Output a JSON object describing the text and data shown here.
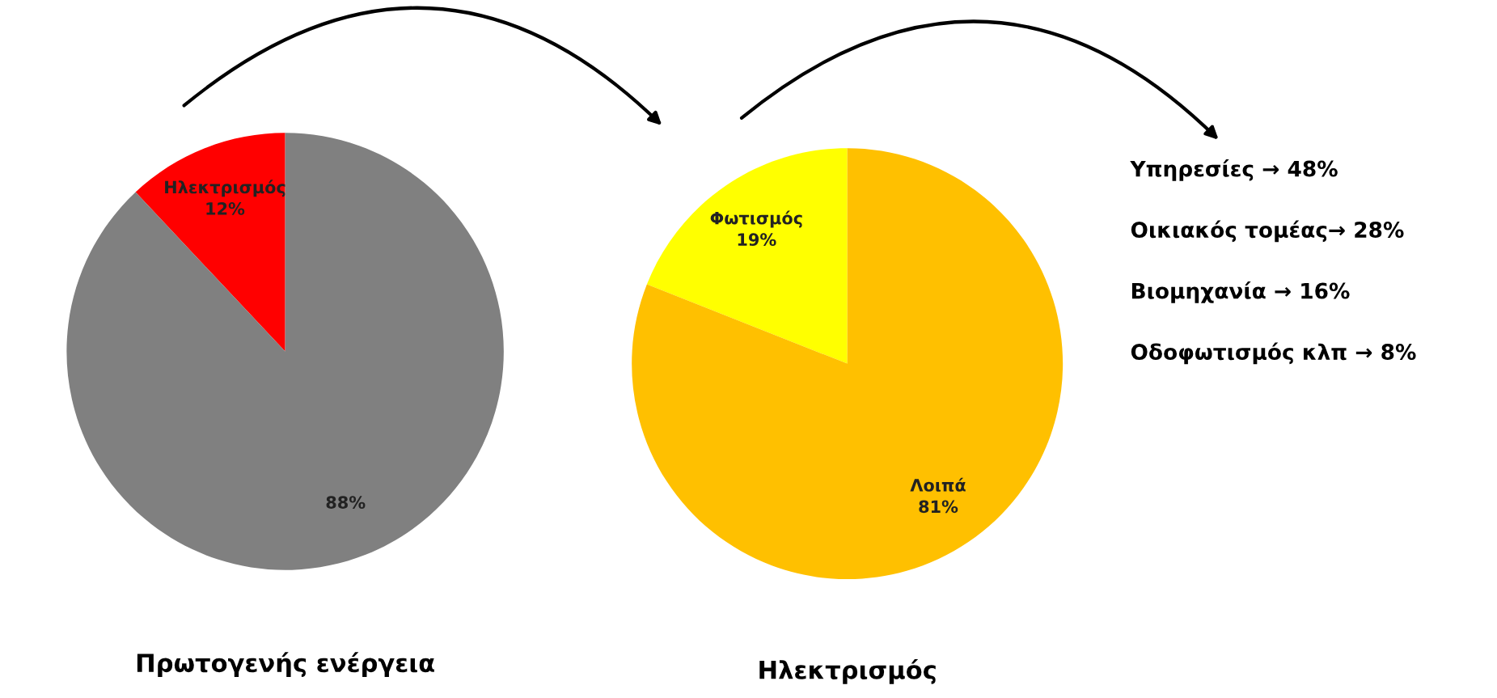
{
  "chart_data": [
    {
      "type": "pie",
      "title": "Πρωτογενής ενέργεια",
      "categories": [
        "Ηλεκτρισμός",
        null
      ],
      "values": [
        12,
        88
      ],
      "colors": [
        "#ff0000",
        "#808080"
      ],
      "value_labels": [
        "12%",
        "88%"
      ]
    },
    {
      "type": "pie",
      "title": "Ηλεκτρισμός",
      "categories": [
        "Φωτισμός",
        "Λοιπά"
      ],
      "values": [
        19,
        81
      ],
      "colors": [
        "#ffff00",
        "#ffc000"
      ],
      "value_labels": [
        "19%",
        "81%"
      ]
    },
    {
      "type": "other",
      "annotations": [
        "Υπηρεσίες → 48%",
        "Οικιακός τομέας→ 28%",
        "Βιομηχανία → 16%",
        "Οδοφωτισμός κλπ → 8%"
      ]
    }
  ]
}
